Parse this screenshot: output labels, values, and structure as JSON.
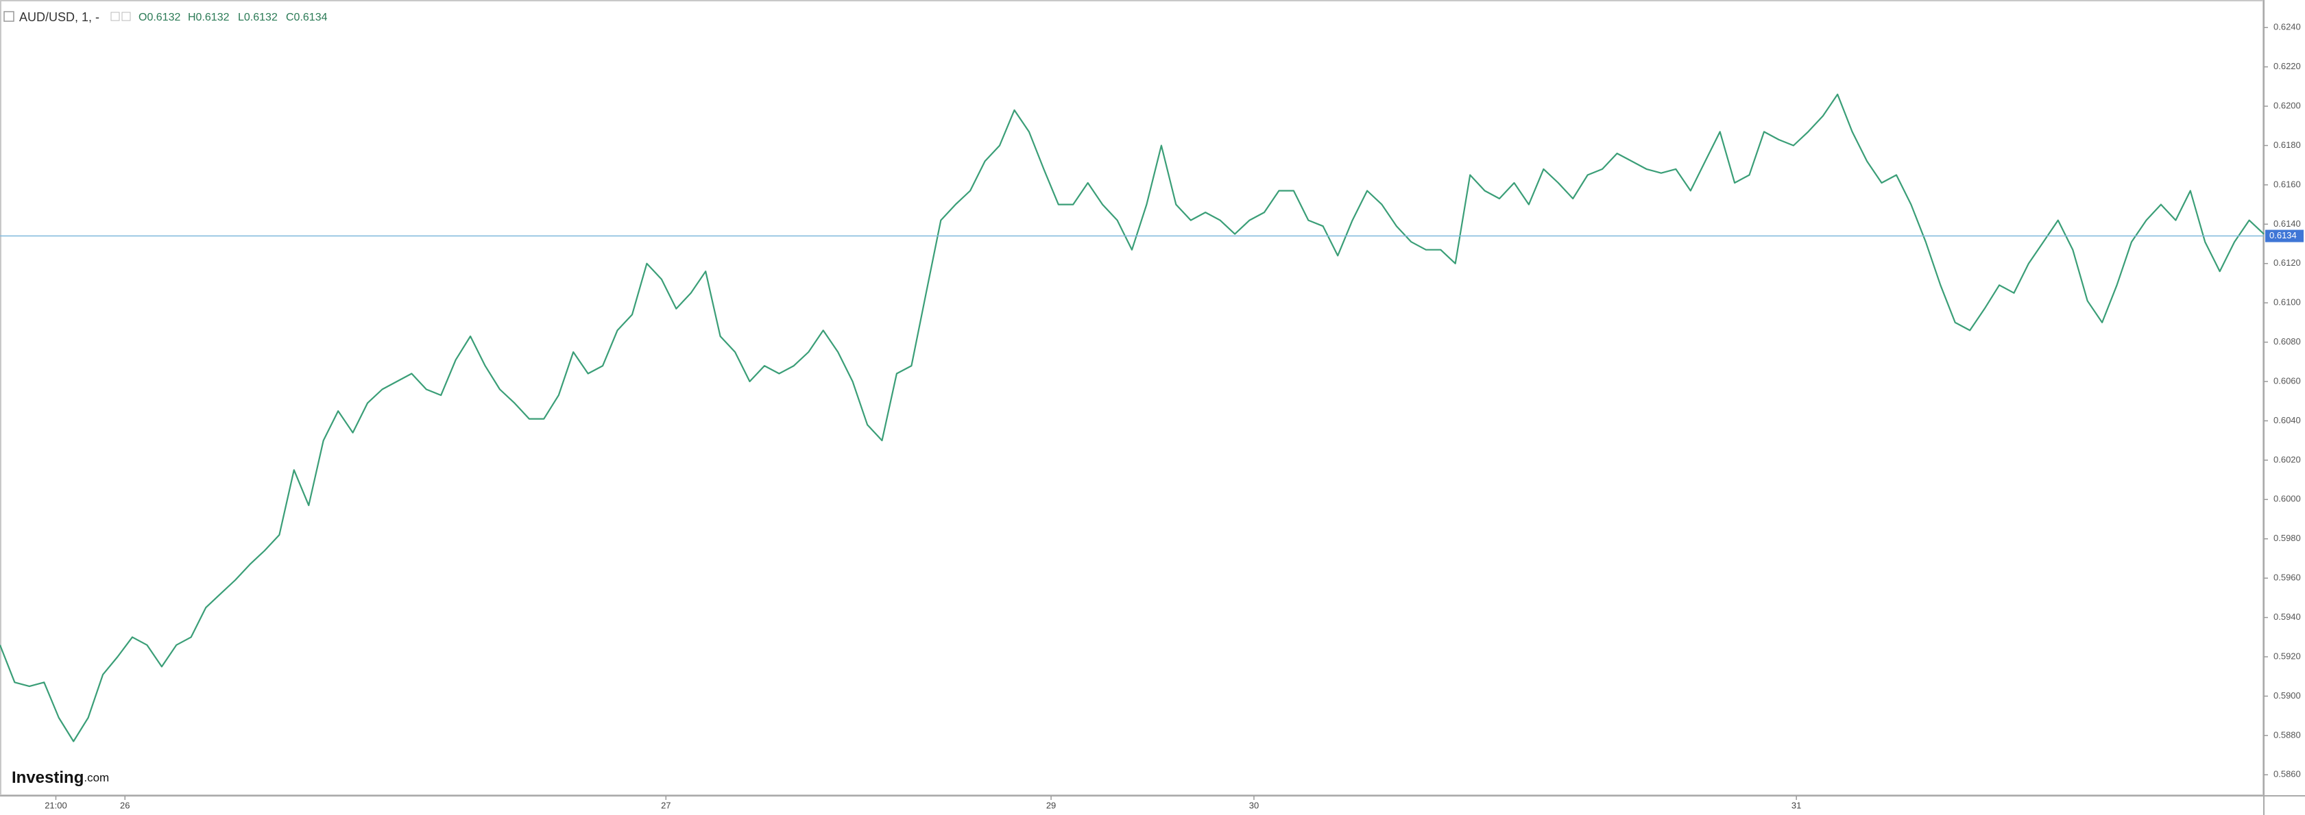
{
  "chart_data": {
    "type": "line",
    "title": "AUD/USD, 1, -",
    "legend_values": [
      "O0.6132",
      "H0.6132",
      "L0.6132",
      "C0.6134"
    ],
    "logo": [
      "Investing",
      ".com"
    ],
    "series": [
      {
        "name": "AUD/USD",
        "color": "#3a9e77",
        "values": [
          0.5926,
          0.5907,
          0.5905,
          0.5907,
          0.5889,
          0.5877,
          0.5889,
          0.5911,
          0.592,
          0.593,
          0.5926,
          0.5915,
          0.5926,
          0.593,
          0.5945,
          0.5952,
          0.5959,
          0.5967,
          0.5974,
          0.5982,
          0.6015,
          0.5997,
          0.603,
          0.6045,
          0.6034,
          0.6049,
          0.6056,
          0.606,
          0.6064,
          0.6056,
          0.6053,
          0.6071,
          0.6083,
          0.6068,
          0.6056,
          0.6049,
          0.6041,
          0.6041,
          0.6053,
          0.6075,
          0.6064,
          0.6068,
          0.6086,
          0.6094,
          0.612,
          0.6112,
          0.6097,
          0.6105,
          0.6116,
          0.6083,
          0.6075,
          0.606,
          0.6068,
          0.6064,
          0.6068,
          0.6075,
          0.6086,
          0.6075,
          0.606,
          0.6038,
          0.603,
          0.6064,
          0.6068,
          0.6105,
          0.6142,
          0.615,
          0.6157,
          0.6172,
          0.618,
          0.6198,
          0.6187,
          0.6168,
          0.615,
          0.615,
          0.6161,
          0.615,
          0.6142,
          0.6127,
          0.615,
          0.618,
          0.615,
          0.6142,
          0.6146,
          0.6142,
          0.6135,
          0.6142,
          0.6146,
          0.6157,
          0.6157,
          0.6142,
          0.6139,
          0.6124,
          0.6142,
          0.6157,
          0.615,
          0.6139,
          0.6131,
          0.6127,
          0.6127,
          0.612,
          0.6165,
          0.6157,
          0.6153,
          0.6161,
          0.615,
          0.6168,
          0.6161,
          0.6153,
          0.6165,
          0.6168,
          0.6176,
          0.6172,
          0.6168,
          0.6166,
          0.6168,
          0.6157,
          0.6172,
          0.6187,
          0.6161,
          0.6165,
          0.6187,
          0.6183,
          0.618,
          0.6187,
          0.6195,
          0.6206,
          0.6187,
          0.6172,
          0.6161,
          0.6165,
          0.615,
          0.6131,
          0.6109,
          0.609,
          0.6086,
          0.6097,
          0.6109,
          0.6105,
          0.612,
          0.6131,
          0.6142,
          0.6127,
          0.6101,
          0.609,
          0.6109,
          0.6131,
          0.6142,
          0.615,
          0.6142,
          0.6157,
          0.6131,
          0.6116,
          0.6131,
          0.6142,
          0.6135
        ]
      }
    ],
    "last_price": 0.6134,
    "xlim": [
      0,
      154
    ],
    "xticks": [
      {
        "value": 3.8,
        "label": "21:00"
      },
      {
        "value": 8.5,
        "label": "26"
      },
      {
        "value": 45.3,
        "label": "27"
      },
      {
        "value": 71.5,
        "label": "29"
      },
      {
        "value": 85.3,
        "label": "30"
      },
      {
        "value": 122.2,
        "label": "31"
      }
    ],
    "ylim": [
      0.585,
      0.6254
    ],
    "yticks": [
      {
        "value": 0.586,
        "label": "0.5860"
      },
      {
        "value": 0.588,
        "label": "0.5880"
      },
      {
        "value": 0.59,
        "label": "0.5900"
      },
      {
        "value": 0.592,
        "label": "0.5920"
      },
      {
        "value": 0.594,
        "label": "0.5940"
      },
      {
        "value": 0.596,
        "label": "0.5960"
      },
      {
        "value": 0.598,
        "label": "0.5980"
      },
      {
        "value": 0.6,
        "label": "0.6000"
      },
      {
        "value": 0.602,
        "label": "0.6020"
      },
      {
        "value": 0.604,
        "label": "0.6040"
      },
      {
        "value": 0.606,
        "label": "0.6060"
      },
      {
        "value": 0.608,
        "label": "0.6080"
      },
      {
        "value": 0.61,
        "label": "0.6100"
      },
      {
        "value": 0.612,
        "label": "0.6120"
      },
      {
        "value": 0.614,
        "label": "0.6140"
      },
      {
        "value": 0.616,
        "label": "0.6160"
      },
      {
        "value": 0.618,
        "label": "0.6180"
      },
      {
        "value": 0.62,
        "label": "0.6200"
      },
      {
        "value": 0.622,
        "label": "0.6220"
      },
      {
        "value": 0.624,
        "label": "0.6240"
      }
    ],
    "grid": false
  }
}
